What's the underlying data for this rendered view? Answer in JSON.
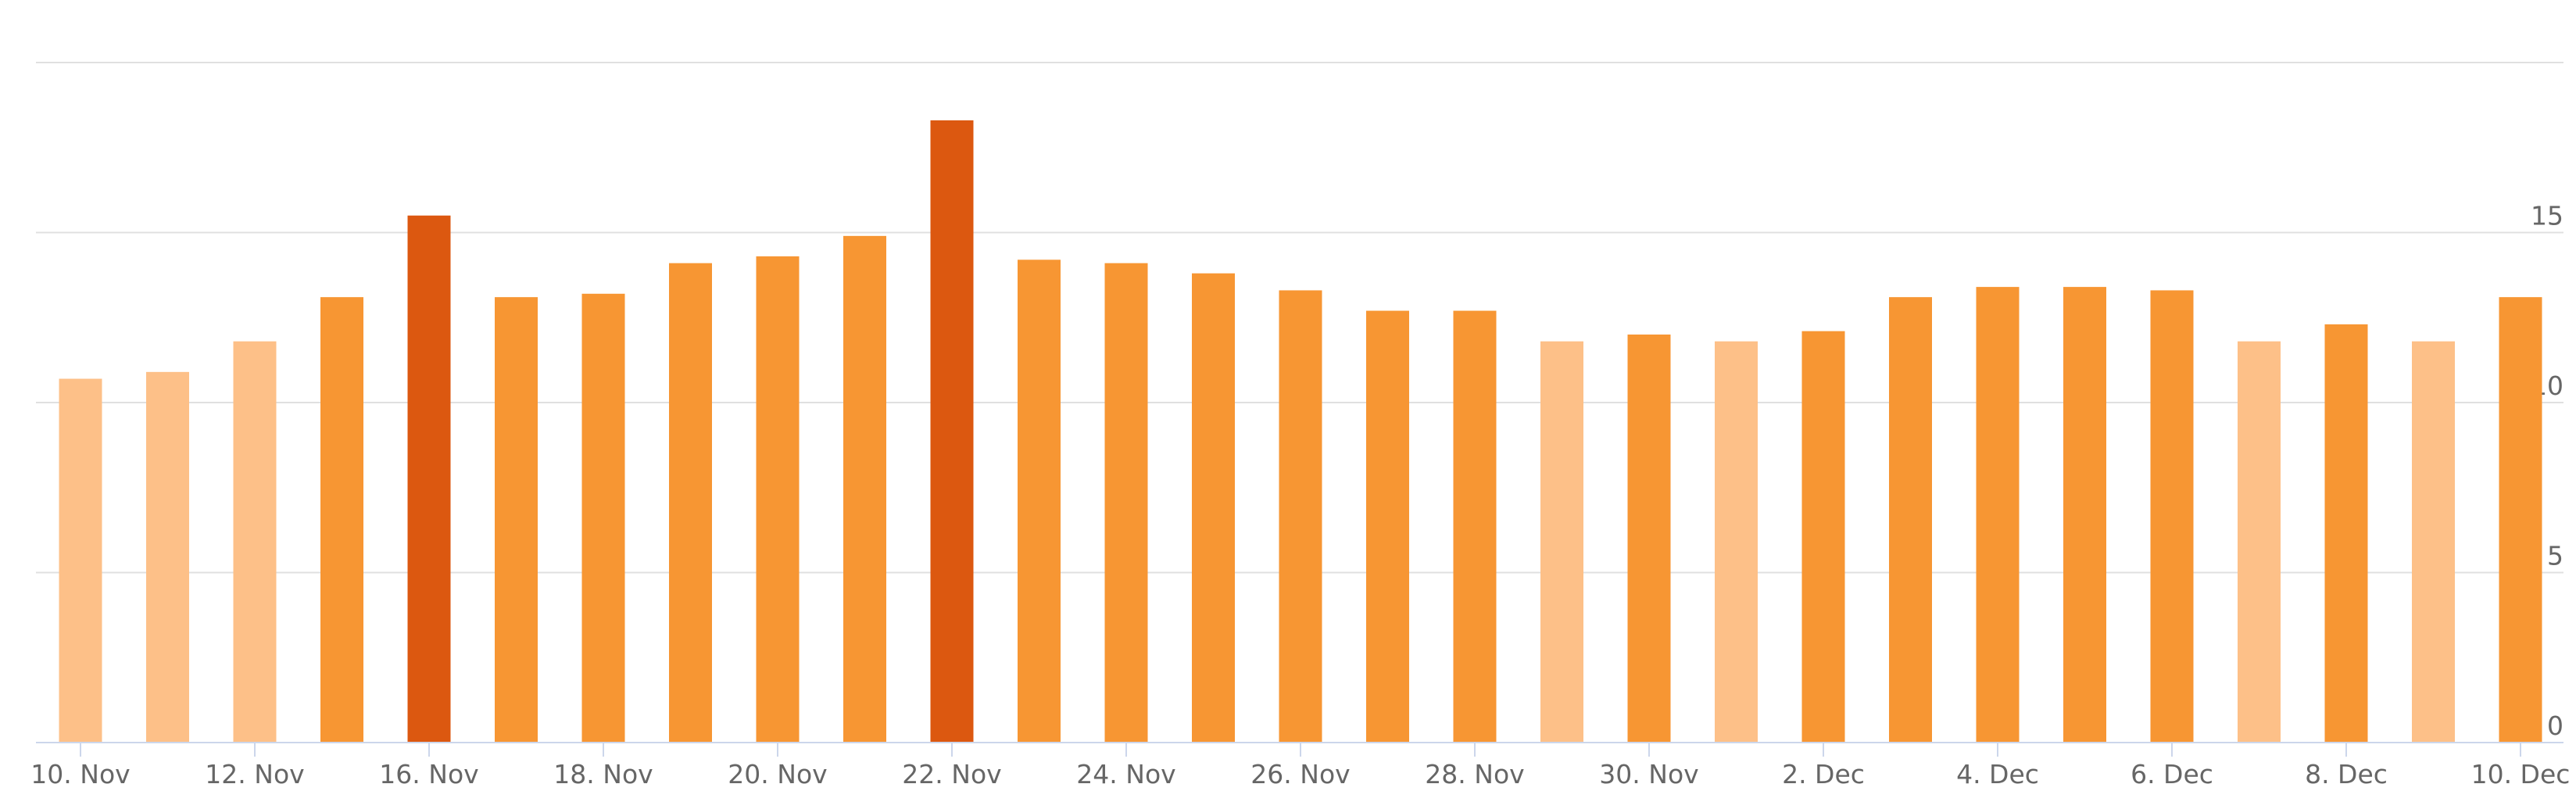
{
  "chart_data": {
    "type": "bar",
    "categories": [
      "10. Nov",
      null,
      "12. Nov",
      null,
      "16. Nov",
      null,
      "18. Nov",
      null,
      "20. Nov",
      null,
      "22. Nov",
      null,
      "24. Nov",
      null,
      "26. Nov",
      null,
      "28. Nov",
      null,
      "30. Nov",
      null,
      "2. Dec",
      null,
      "4. Dec",
      null,
      "6. Dec",
      null,
      "8. Dec",
      null,
      "10. Dec"
    ],
    "values": [
      10.7,
      10.9,
      11.8,
      13.1,
      15.5,
      13.1,
      13.2,
      14.1,
      14.3,
      14.9,
      18.3,
      14.2,
      14.1,
      13.8,
      13.3,
      12.7,
      12.7,
      11.8,
      12.0,
      11.8,
      12.1,
      13.1,
      13.4,
      13.4,
      13.3,
      11.8,
      12.3,
      11.8,
      13.1
    ],
    "colors": [
      "#fdc088",
      "#fdc088",
      "#fdc088",
      "#f79633",
      "#dc5810",
      "#f79633",
      "#f79633",
      "#f79633",
      "#f79633",
      "#f79633",
      "#dc5810",
      "#f79633",
      "#f79633",
      "#f79633",
      "#f79633",
      "#f79633",
      "#f79633",
      "#fdc088",
      "#f79633",
      "#fdc088",
      "#f79633",
      "#f79633",
      "#f79633",
      "#f79633",
      "#f79633",
      "#fdc088",
      "#f79633",
      "#fdc088",
      "#f79633"
    ],
    "ylim": [
      0,
      20
    ],
    "yticks": [
      0,
      5,
      10,
      15
    ],
    "grid": true,
    "y_axis_side": "right"
  }
}
